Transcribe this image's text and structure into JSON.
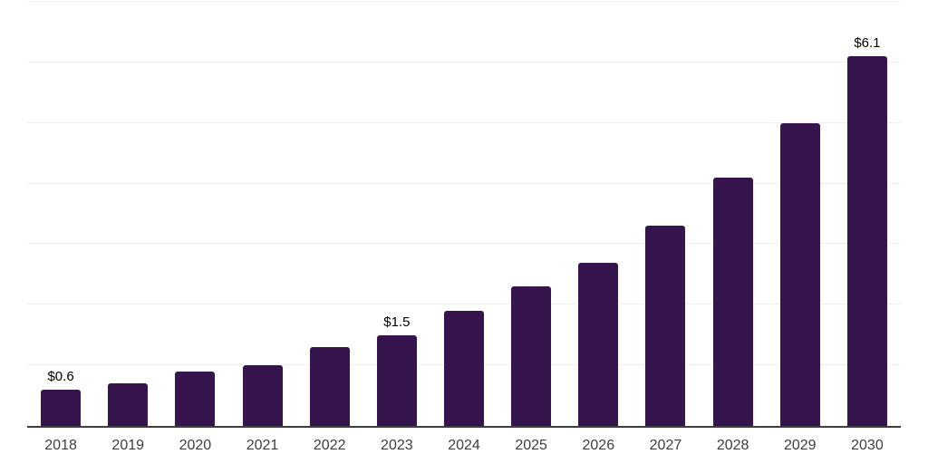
{
  "chart_data": {
    "type": "bar",
    "title": "",
    "xlabel": "",
    "ylabel": "",
    "categories": [
      "2018",
      "2019",
      "2020",
      "2021",
      "2022",
      "2023",
      "2024",
      "2025",
      "2026",
      "2027",
      "2028",
      "2029",
      "2030"
    ],
    "values": [
      0.6,
      0.7,
      0.9,
      1.0,
      1.3,
      1.5,
      1.9,
      2.3,
      2.7,
      3.3,
      4.1,
      5.0,
      6.1
    ],
    "data_labels": {
      "2018": "$0.6",
      "2023": "$1.5",
      "2030": "$6.1"
    },
    "ylim": [
      0,
      7
    ],
    "gridline_step": 1,
    "grid": "horizontal",
    "legend": "none",
    "y_axis_labels_visible": false
  },
  "colors": {
    "background": "#FFFFFF",
    "bar": "#36154E",
    "gridline": "#F0F0F2",
    "axis_line": "#3E3E40",
    "tick_label": "#3D3D3D",
    "data_label": "#000000"
  }
}
